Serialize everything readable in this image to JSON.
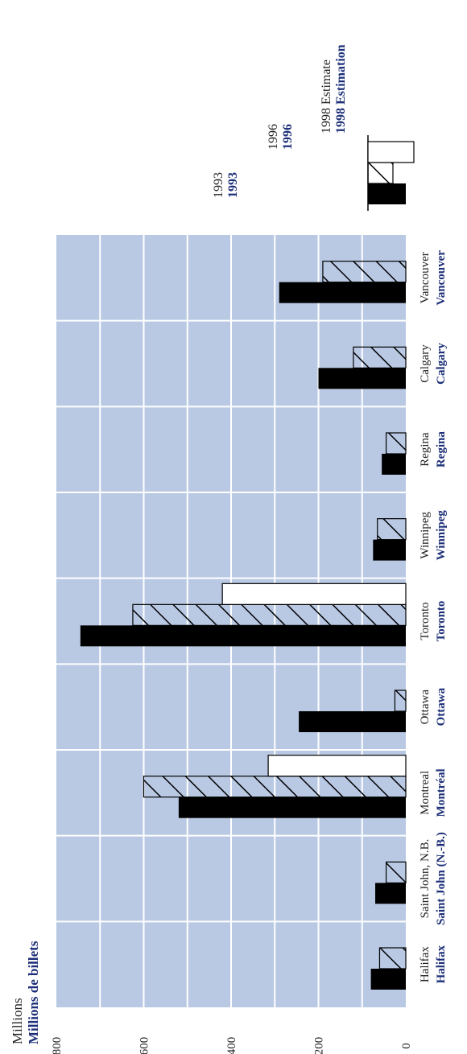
{
  "chart_data": {
    "type": "bar",
    "orientation": "vertical-bars-rotated-page",
    "ylabel_en": "Millions",
    "ylabel_fr": "Millions de billets",
    "ylim": [
      0,
      800
    ],
    "yticks": [
      "0",
      "200",
      "400",
      "600",
      "800"
    ],
    "grid": true,
    "legend_position": "top-right",
    "categories_en": [
      "Halifax",
      "Saint John, N.B.",
      "Montreal",
      "Ottawa",
      "Toronto",
      "Winnipeg",
      "Regina",
      "Calgary",
      "Vancouver"
    ],
    "categories_fr": [
      "Halifax",
      "Saint John (N.-B.)",
      "Montréal",
      "Ottawa",
      "Toronto",
      "Winnipeg",
      "Regina",
      "Calgary",
      "Vancouver"
    ],
    "series": [
      {
        "name_en": "1993",
        "name_fr": "1993",
        "pattern": "solid",
        "values": [
          80,
          70,
          520,
          245,
          745,
          75,
          55,
          200,
          290
        ]
      },
      {
        "name_en": "1996",
        "name_fr": "1996",
        "pattern": "hatched",
        "values": [
          60,
          45,
          600,
          25,
          625,
          65,
          45,
          120,
          190
        ]
      },
      {
        "name_en": "1998 Estimate",
        "name_fr": "1998 Estimation",
        "pattern": "open",
        "values": [
          null,
          null,
          315,
          null,
          420,
          null,
          null,
          null,
          null
        ]
      }
    ]
  },
  "colors": {
    "plot_background": "#b9c9e4",
    "gridline": "#ffffff",
    "bar_solid": "#000000",
    "french_text": "#1c2f78",
    "english_text": "#222222"
  }
}
